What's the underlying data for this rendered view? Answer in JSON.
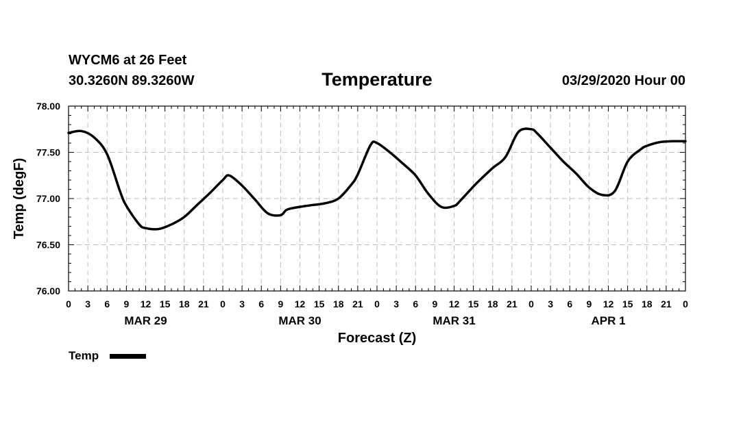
{
  "header": {
    "station_line": "WYCM6 at 26 Feet",
    "coords_line": "30.3260N 89.3260W",
    "datetime_line": "03/29/2020 Hour 00"
  },
  "chart_data": {
    "type": "line",
    "title": "Temperature",
    "xlabel": "Forecast (Z)",
    "ylabel": "Temp (degF)",
    "ylim": [
      76.0,
      78.0
    ],
    "yticks": [
      "76.00",
      "76.50",
      "77.00",
      "77.50",
      "78.00"
    ],
    "y_minor_step": 0.1,
    "x_range_hours": [
      0,
      96
    ],
    "x_tick_step_hours": 3,
    "x_minor_step_hours": 1,
    "x_tick_labels": [
      "0",
      "3",
      "6",
      "9",
      "12",
      "15",
      "18",
      "21",
      "0",
      "3",
      "6",
      "9",
      "12",
      "15",
      "18",
      "21",
      "0",
      "3",
      "6",
      "9",
      "12",
      "15",
      "18",
      "21",
      "0",
      "3",
      "6",
      "9",
      "12",
      "15",
      "18",
      "21",
      "0"
    ],
    "day_labels": [
      {
        "label": "MAR 29",
        "hour": 12
      },
      {
        "label": "MAR 30",
        "hour": 36
      },
      {
        "label": "MAR 31",
        "hour": 60
      },
      {
        "label": "APR 1",
        "hour": 84
      }
    ],
    "grid": true,
    "series": [
      {
        "name": "Temp",
        "color": "#000000",
        "x": [
          0,
          2,
          4,
          6,
          8,
          9,
          11,
          12,
          14,
          16,
          18,
          20,
          22,
          24,
          25,
          27,
          29,
          31,
          33,
          34,
          36,
          38,
          40,
          42,
          44,
          45,
          47,
          48,
          50,
          52,
          54,
          56,
          58,
          60,
          61,
          63,
          64,
          66,
          68,
          70,
          72,
          73,
          75,
          77,
          79,
          81,
          83,
          85,
          87,
          89,
          90,
          92,
          94,
          96
        ],
        "values": [
          77.71,
          77.73,
          77.66,
          77.48,
          77.08,
          76.92,
          76.72,
          76.68,
          76.67,
          76.72,
          76.8,
          76.93,
          77.06,
          77.2,
          77.25,
          77.14,
          76.99,
          76.84,
          76.82,
          76.88,
          76.91,
          76.93,
          76.95,
          77.0,
          77.15,
          77.26,
          77.58,
          77.6,
          77.5,
          77.38,
          77.25,
          77.05,
          76.91,
          76.92,
          76.98,
          77.13,
          77.2,
          77.33,
          77.45,
          77.72,
          77.75,
          77.7,
          77.55,
          77.4,
          77.27,
          77.12,
          77.04,
          77.08,
          77.4,
          77.53,
          77.57,
          77.61,
          77.62,
          77.62
        ]
      }
    ]
  },
  "legend": {
    "label": "Temp",
    "placement": "bottom-left"
  }
}
